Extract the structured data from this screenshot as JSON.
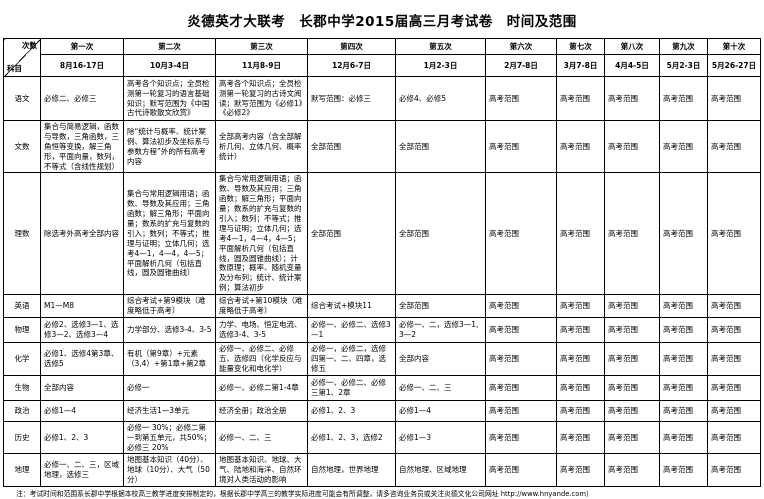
{
  "title": "炎德英才大联考　长郡中学2015届高三月考试卷　时间及范围",
  "table": {
    "corner": {
      "top": "次数",
      "bottom": "科目"
    },
    "columns": [
      {
        "name": "第一次",
        "date": "8月16-17日"
      },
      {
        "name": "第二次",
        "date": "10月3-4日"
      },
      {
        "name": "第三次",
        "date": "11月8-9日"
      },
      {
        "name": "第四次",
        "date": "12月6-7日"
      },
      {
        "name": "第五次",
        "date": "1月2-3日"
      },
      {
        "name": "第六次",
        "date": "2月7-8日"
      },
      {
        "name": "第七次",
        "date": "3月7-8日"
      },
      {
        "name": "第八次",
        "date": "4月4-5日"
      },
      {
        "name": "第九次",
        "date": "5月2-3日"
      },
      {
        "name": "第十次",
        "date": "5月26-27日"
      }
    ],
    "rows": [
      {
        "subject": "语文",
        "cells": [
          "必修二、必修三",
          "高考各个知识点；全员检测第一轮复习的语言基础知识；默写范围为《中国古代诗歌散文欣赏》",
          "高考各个知识点；全员检测第一轮复习的古诗文阅读；默写范围为《必修1》《必修2》",
          "默写范围：必修三",
          "必修4、必修5",
          "高考范围",
          "高考范围",
          "高考范围",
          "高考范围",
          "高考范围"
        ]
      },
      {
        "subject": "文数",
        "cells": [
          "集合与简易逻辑，函数与导数，三角函数，三角恒等变换，解三角形，平面向量，数列，不等式（含线性规划）",
          "除“统计与概率、统计案例、算法初步及坐标系与参数方程”外的所有高考内容",
          "全部高考内容（含全部解析几何、立体几何、概率统计）",
          "全部范围",
          "全部范围",
          "高考范围",
          "高考范围",
          "高考范围",
          "高考范围",
          "高考范围"
        ]
      },
      {
        "subject": "理数",
        "cells": [
          "除选考外高考全部内容",
          "集合与常用逻辑用语；函数、导数及其应用；三角函数；解三角形；平面向量；数系的扩充与复数的引入；数列；不等式；推理与证明；立体几何；选考4—1，4—4，4—5；平面解析几何（包括直线，圆及圆锥曲线）",
          "集合与常用逻辑用语；函数、导数及其应用；三角函数；解三角形；平面向量；数系的扩充与复数的引入；数列；不等式；推理与证明；立体几何；选考4—1，4—4，4—5；平面解析几何（包括直线，圆及圆锥曲线）；计数原理；概率、随机变量及分布列；统计、统计案例；算法初步",
          "全部范围",
          "全部范围",
          "高考范围",
          "高考范围",
          "高考范围",
          "高考范围",
          "高考范围"
        ]
      },
      {
        "subject": "英语",
        "cells": [
          "M1—M8",
          "综合考试+第9模块（难度略低于高考）",
          "综合考试+第10模块（难度略低于高考）",
          "综合考试+模块11",
          "全部范围",
          "高考范围",
          "高考范围",
          "高考范围",
          "高考范围",
          "高考范围"
        ]
      },
      {
        "subject": "物理",
        "cells": [
          "必修2、选修3—1、选修3—2、选修3—4",
          "力学部分、选修3-4、3-5",
          "力学、电场、恒定电流、选修3-4、3-5",
          "必修一、必修二、选修3—1",
          "必修一、二，选修3—1,3—2",
          "高考范围",
          "高考范围",
          "高考范围",
          "高考范围",
          "高考范围"
        ]
      },
      {
        "subject": "化学",
        "cells": [
          "必修1、选修4第3章、选修5",
          "有机（第9章）+元素（3,4）+第1章+第2章",
          "必修一、必修二、必修五、选修四（化学反应与能量变化和电化学）",
          "必修一，必修二，选修四第一、二、四章，选修五",
          "全部内容",
          "高考范围",
          "高考范围",
          "高考范围",
          "高考范围",
          "高考范围"
        ]
      },
      {
        "subject": "生物",
        "cells": [
          "全部内容",
          "必修一",
          "必修一、必修二第1-4章",
          "必修一、必修二、必修三第1、2章",
          "必修一、二、三",
          "高考范围",
          "高考范围",
          "高考范围",
          "高考范围",
          "高考范围"
        ]
      },
      {
        "subject": "政治",
        "cells": [
          "必修1—4",
          "经济生活1—3单元",
          "经济全册；政治全册",
          "必修1、2、3",
          "必修1—4",
          "高考范围",
          "高考范围",
          "高考范围",
          "高考范围",
          "高考范围"
        ]
      },
      {
        "subject": "历史",
        "cells": [
          "必修1、2、3",
          "必修一 30%；必修二第一到第五单元，共50%；必修三 20%",
          "必修一、二、三",
          "必修1、2、3，选修2",
          "必修1—3",
          "高考范围",
          "高考范围",
          "高考范围",
          "高考范围",
          "高考范围"
        ]
      },
      {
        "subject": "地理",
        "cells": [
          "必修一、二、三，区域地理，选修三",
          "地图基本知识（40分）、地球（10分）、大气（50分）",
          "地图基本知识、地球、大气、陆地和海洋、自然环境对人类活动的影响",
          "自然地理，世界地理",
          "自然地理、区域地理",
          "高考范围",
          "高考范围",
          "高考范围",
          "高考范围",
          "高考范围"
        ]
      }
    ]
  },
  "footnote": "注：考试时间和范围系长郡中学根据本校高三教学进度安排制定的，根据长郡中学高三的教学实际进度可能会有所调整，请多咨询业务员或关注炎德文化公司网址 http://www.hnyande.com）"
}
